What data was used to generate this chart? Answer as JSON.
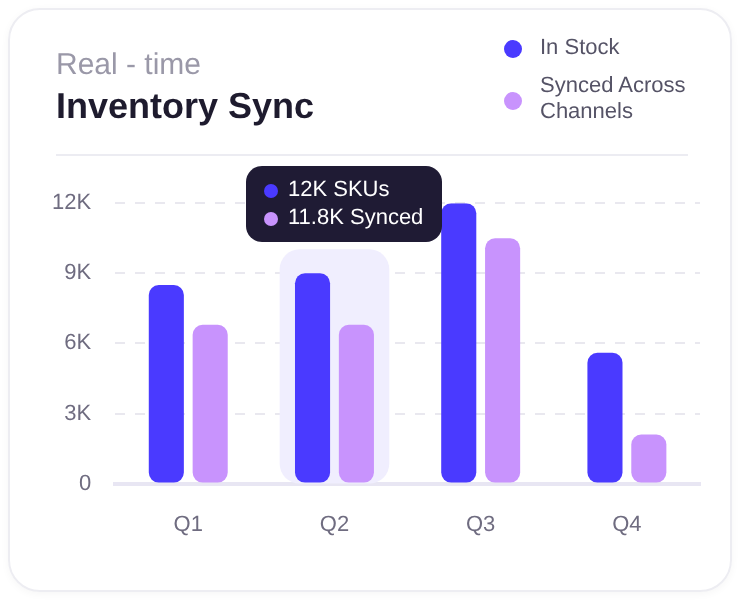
{
  "chart_data": {
    "type": "bar",
    "title": "Inventory Sync",
    "subtitle": "Real - time",
    "categories": [
      "Q1",
      "Q2",
      "Q3",
      "Q4"
    ],
    "series": [
      {
        "name": "In Stock",
        "color": "#4a3aff",
        "values": [
          8500,
          9000,
          12000,
          5600
        ]
      },
      {
        "name": "Synced Across Channels",
        "color": "#c893fd",
        "values": [
          6800,
          6800,
          10500,
          2100
        ]
      }
    ],
    "ylim": [
      0,
      12000
    ],
    "yticks": [
      0,
      {
        "value": 3000,
        "label": "3K"
      },
      {
        "value": 6000,
        "label": "6K"
      },
      {
        "value": 9000,
        "label": "9K"
      },
      {
        "value": 12000,
        "label": "12K"
      }
    ],
    "bands": [
      {
        "axis": "x",
        "from": "Q2",
        "to": "Q2",
        "color": "#f0eefe"
      }
    ],
    "annotations": [
      "12K SKUs",
      "11.8K Synced"
    ],
    "grid": "y",
    "legend": "top right"
  }
}
